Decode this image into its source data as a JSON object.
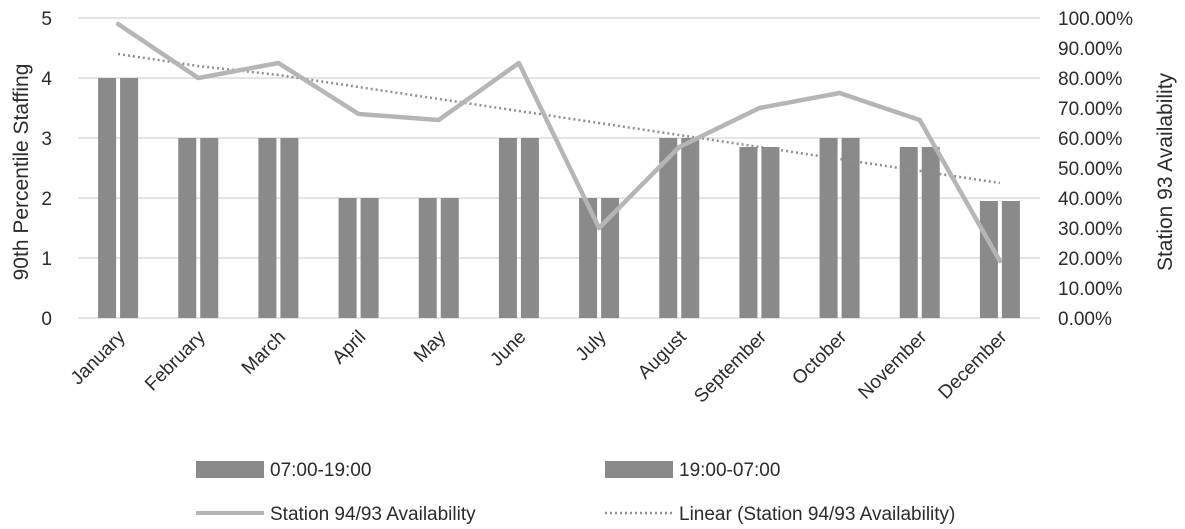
{
  "chart_data": {
    "type": "bar",
    "categories": [
      "January",
      "February",
      "March",
      "April",
      "May",
      "June",
      "July",
      "August",
      "September",
      "October",
      "November",
      "December"
    ],
    "series": [
      {
        "name": "07:00-19:00",
        "type": "bar",
        "axis": "left",
        "values": [
          4,
          3,
          3,
          2,
          2,
          3,
          2,
          3,
          2.85,
          3,
          2.85,
          1.95
        ]
      },
      {
        "name": "19:00-07:00",
        "type": "bar",
        "axis": "left",
        "values": [
          4,
          3,
          3,
          2,
          2,
          3,
          2,
          3,
          2.85,
          3,
          2.85,
          1.95
        ]
      },
      {
        "name": "Station 94/93 Availability",
        "type": "line",
        "axis": "right",
        "values": [
          0.98,
          0.8,
          0.85,
          0.68,
          0.66,
          0.85,
          0.3,
          0.57,
          0.7,
          0.75,
          0.66,
          0.19
        ]
      },
      {
        "name": "Linear (Station 94/93 Availability)",
        "type": "trendline",
        "axis": "right",
        "values": [
          0.88,
          0.84,
          0.81,
          0.77,
          0.73,
          0.69,
          0.65,
          0.61,
          0.57,
          0.53,
          0.49,
          0.45
        ]
      }
    ],
    "ylabel": "90th Percentile Staffing",
    "ylim": [
      0,
      5
    ],
    "yticks": [
      "0",
      "1",
      "2",
      "3",
      "4",
      "5"
    ],
    "y2label": "Station 93 Availability",
    "y2lim": [
      0,
      1
    ],
    "y2ticks": [
      "0.00%",
      "10.00%",
      "20.00%",
      "30.00%",
      "40.00%",
      "50.00%",
      "60.00%",
      "70.00%",
      "80.00%",
      "90.00%",
      "100.00%"
    ],
    "grid": true,
    "legend_position": "bottom",
    "colors": {
      "bar1": "#8a8a8a",
      "bar2": "#8a8a8a",
      "line": "#b5b5b5",
      "trend": "#8f8f8f",
      "grid": "#dcdcdc"
    }
  }
}
